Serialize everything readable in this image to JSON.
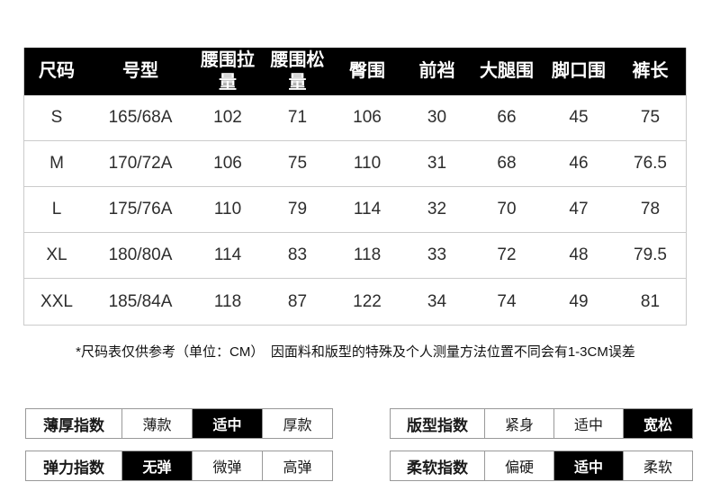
{
  "size_table": {
    "headers": [
      "尺码",
      "号型",
      "腰围拉量",
      "腰围松量",
      "臀围",
      "前裆",
      "大腿围",
      "脚口围",
      "裤长"
    ],
    "rows": [
      [
        "S",
        "165/68A",
        "102",
        "71",
        "106",
        "30",
        "66",
        "45",
        "75"
      ],
      [
        "M",
        "170/72A",
        "106",
        "75",
        "110",
        "31",
        "68",
        "46",
        "76.5"
      ],
      [
        "L",
        "175/76A",
        "110",
        "79",
        "114",
        "32",
        "70",
        "47",
        "78"
      ],
      [
        "XL",
        "180/80A",
        "114",
        "83",
        "118",
        "33",
        "72",
        "48",
        "79.5"
      ],
      [
        "XXL",
        "185/84A",
        "118",
        "87",
        "122",
        "34",
        "74",
        "49",
        "81"
      ]
    ]
  },
  "note": "*尺码表仅供参考（单位：CM）　因面料和版型的特殊及个人测量方法位置不同会有1-3CM误差",
  "indicators": [
    {
      "label": "薄厚指数",
      "options": [
        "薄款",
        "适中",
        "厚款"
      ],
      "selected": 1
    },
    {
      "label": "版型指数",
      "options": [
        "紧身",
        "适中",
        "宽松"
      ],
      "selected": 2
    },
    {
      "label": "弹力指数",
      "options": [
        "无弹",
        "微弹",
        "高弹"
      ],
      "selected": 0
    },
    {
      "label": "柔软指数",
      "options": [
        "偏硬",
        "适中",
        "柔软"
      ],
      "selected": 1
    }
  ],
  "colors": {
    "header_bg": "#000000",
    "header_text": "#ffffff",
    "selected_bg": "#000000",
    "selected_text": "#ffffff",
    "grid_line": "#cbcbcb",
    "indicator_border": "#999999",
    "body_text": "#2d2d2d"
  }
}
